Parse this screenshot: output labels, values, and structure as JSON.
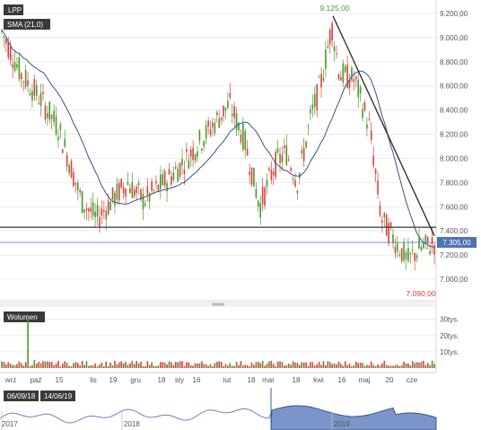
{
  "chart_data": {
    "type": "line",
    "series": [
      {
        "name": "LPP",
        "values": []
      },
      {
        "name": "SMA (21,0)",
        "values": []
      },
      {
        "name": "Wolumen",
        "values": []
      }
    ],
    "price_axis": {
      "ticks": [
        "9.200,00",
        "9.000,00",
        "8.800,00",
        "8.600,00",
        "8.400,00",
        "8.200,00",
        "8.000,00",
        "7.800,00",
        "7.600,00",
        "7.400,00",
        "7.200,00",
        "7.000,00"
      ],
      "ylim": [
        6900,
        9250
      ]
    },
    "volume_axis": {
      "ticks": [
        "30tys.",
        "20tys.",
        "10tys."
      ],
      "ylim": [
        0,
        35
      ]
    },
    "x_ticks": [
      "wrz",
      "paź",
      "15",
      "lis",
      "19",
      "gru",
      "18",
      "sty",
      "16",
      "lut",
      "18",
      "mar",
      "18",
      "kwi",
      "16",
      "maj",
      "20",
      "cze"
    ],
    "annotations": {
      "high": "9.125,00",
      "low": "7.090,00",
      "last": "7.305,00",
      "hline": 7430
    },
    "trendline": [
      [
        "2019-04-05",
        9180
      ],
      [
        "2019-07-01",
        7360
      ]
    ],
    "sma_label": "SMA (21,0)",
    "volume_label": "Wolumen",
    "symbol": "LPP",
    "navigator": {
      "from": "06/09/18",
      "to": "14/06/19",
      "years": [
        "2017",
        "2018",
        "2019"
      ]
    },
    "colors": {
      "up": "#4a9a28",
      "down": "#d8423f",
      "sma": "#3d4f8f",
      "hline": "#333333",
      "navigator": "#4f72b5",
      "last_badge": "#4f72b5"
    }
  }
}
